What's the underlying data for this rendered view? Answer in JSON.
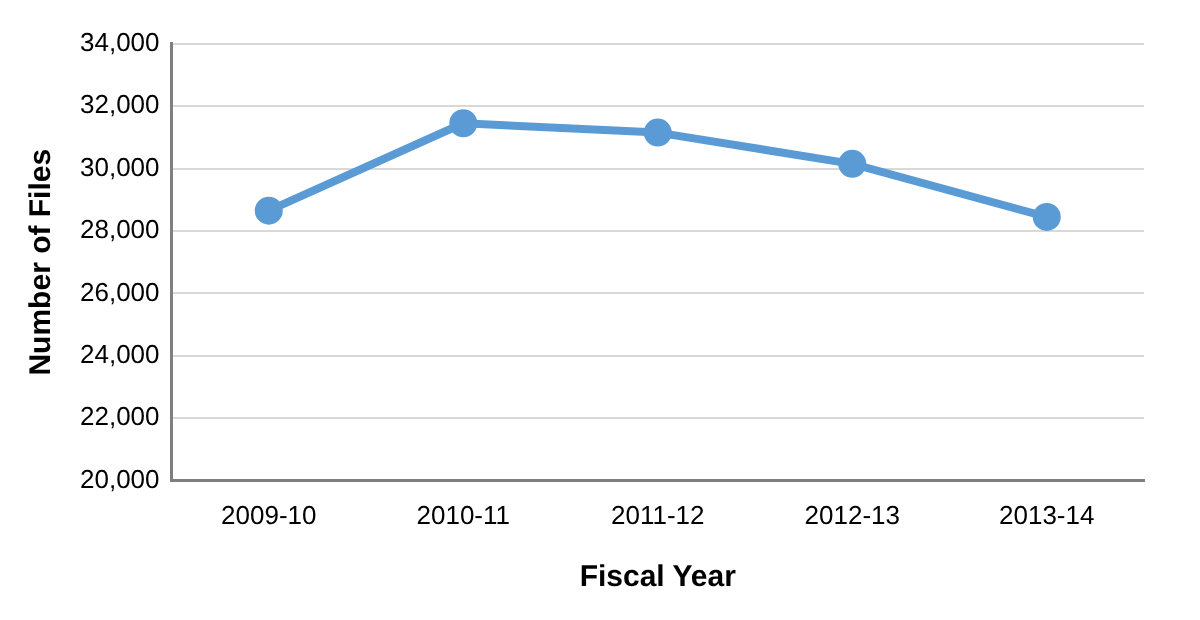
{
  "chart_data": {
    "type": "line",
    "xlabel": "Fiscal Year",
    "ylabel": "Number of Files",
    "categories": [
      "2009-10",
      "2010-11",
      "2011-12",
      "2012-13",
      "2013-14"
    ],
    "series": [
      {
        "color": "#5b9bd5",
        "values": [
          28650,
          31450,
          31150,
          30150,
          28450
        ]
      }
    ],
    "ylim": [
      20000,
      34000
    ],
    "yticks": [
      {
        "value": 20000,
        "label": "20,000"
      },
      {
        "value": 22000,
        "label": "22,000"
      },
      {
        "value": 24000,
        "label": "24,000"
      },
      {
        "value": 26000,
        "label": "26,000"
      },
      {
        "value": 28000,
        "label": "28,000"
      },
      {
        "value": 30000,
        "label": "30,000"
      },
      {
        "value": 32000,
        "label": "32,000"
      },
      {
        "value": 34000,
        "label": "34,000"
      }
    ],
    "grid": "y",
    "marker": "circle",
    "line_style": "solid"
  }
}
